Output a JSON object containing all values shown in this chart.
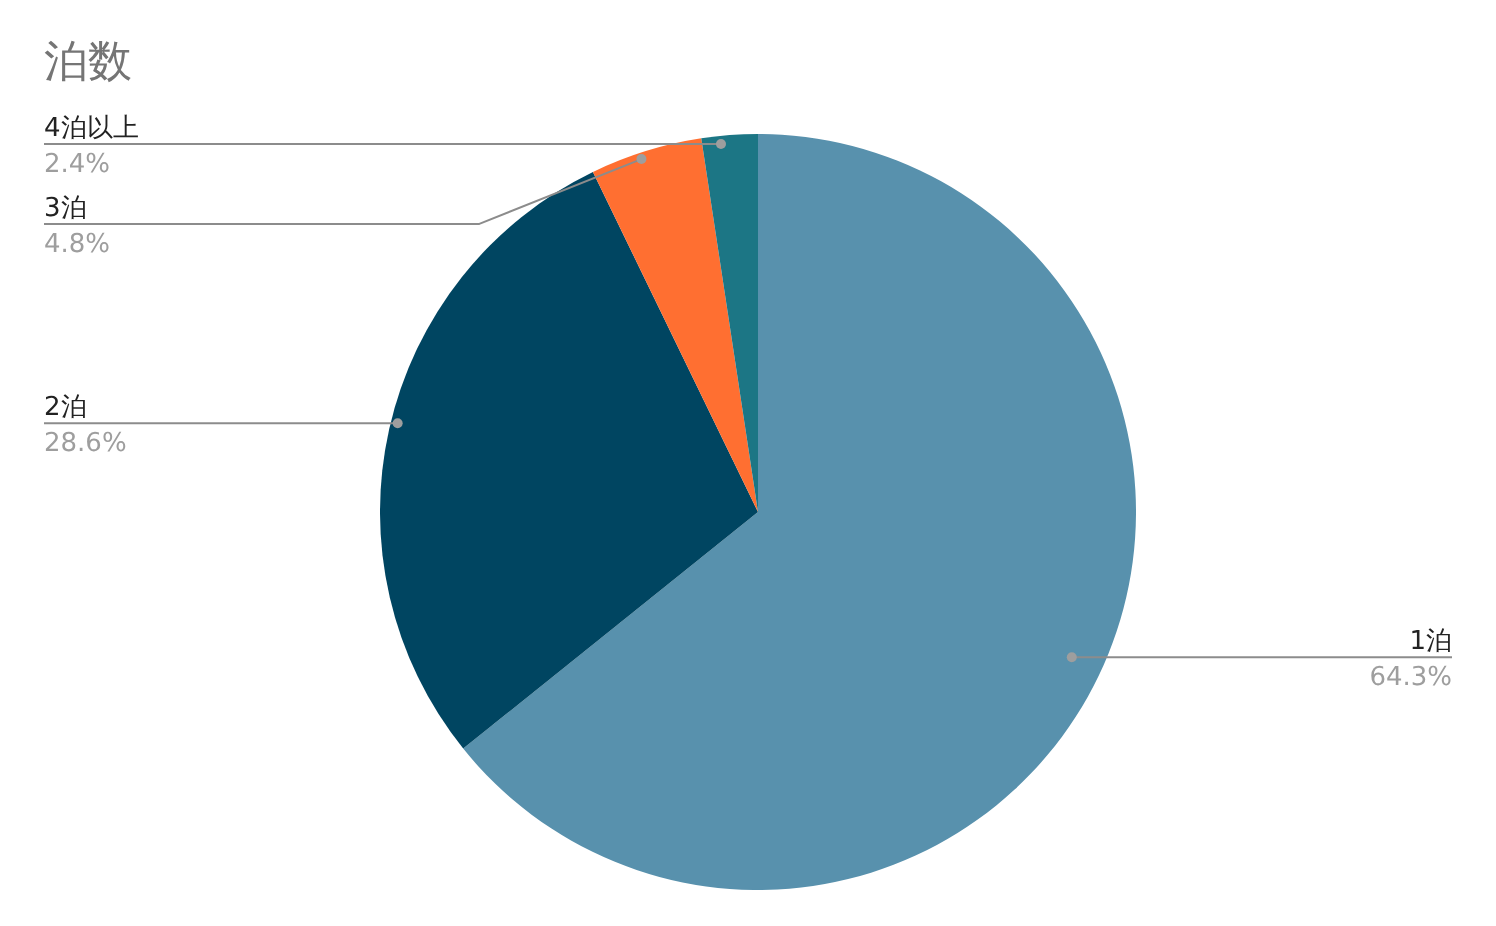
{
  "chart_data": {
    "type": "pie",
    "title": "泊数",
    "categories": [
      "1泊",
      "2泊",
      "3泊",
      "4泊以上"
    ],
    "values": [
      64.3,
      28.6,
      4.8,
      2.4
    ],
    "colors": [
      "#5891ad",
      "#004561",
      "#ff6f31",
      "#1c7685"
    ],
    "value_labels": [
      "64.3%",
      "28.6%",
      "4.8%",
      "2.4%"
    ]
  }
}
